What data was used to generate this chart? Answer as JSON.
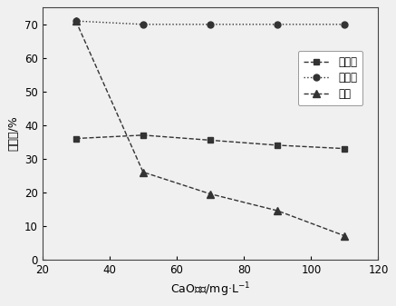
{
  "x": [
    30,
    50,
    70,
    90,
    110
  ],
  "magnetite_y": [
    36,
    37,
    35.5,
    34,
    33
  ],
  "hematite_y": [
    71,
    70,
    70,
    70,
    70
  ],
  "quartz_y": [
    71,
    26,
    19.5,
    14.5,
    7
  ],
  "xlabel": "CaO用量/mg·L$^{-1}$",
  "ylabel": "回收率/%",
  "legend_magnetite": "磁铁矿",
  "legend_hematite": "赤铁矿",
  "legend_quartz": "石英",
  "xlim": [
    20,
    120
  ],
  "ylim": [
    0,
    75
  ],
  "xticks": [
    20,
    40,
    60,
    80,
    100,
    120
  ],
  "yticks": [
    0,
    10,
    20,
    30,
    40,
    50,
    60,
    70
  ],
  "line_color": "#333333",
  "bg_color": "#f0f0f0"
}
